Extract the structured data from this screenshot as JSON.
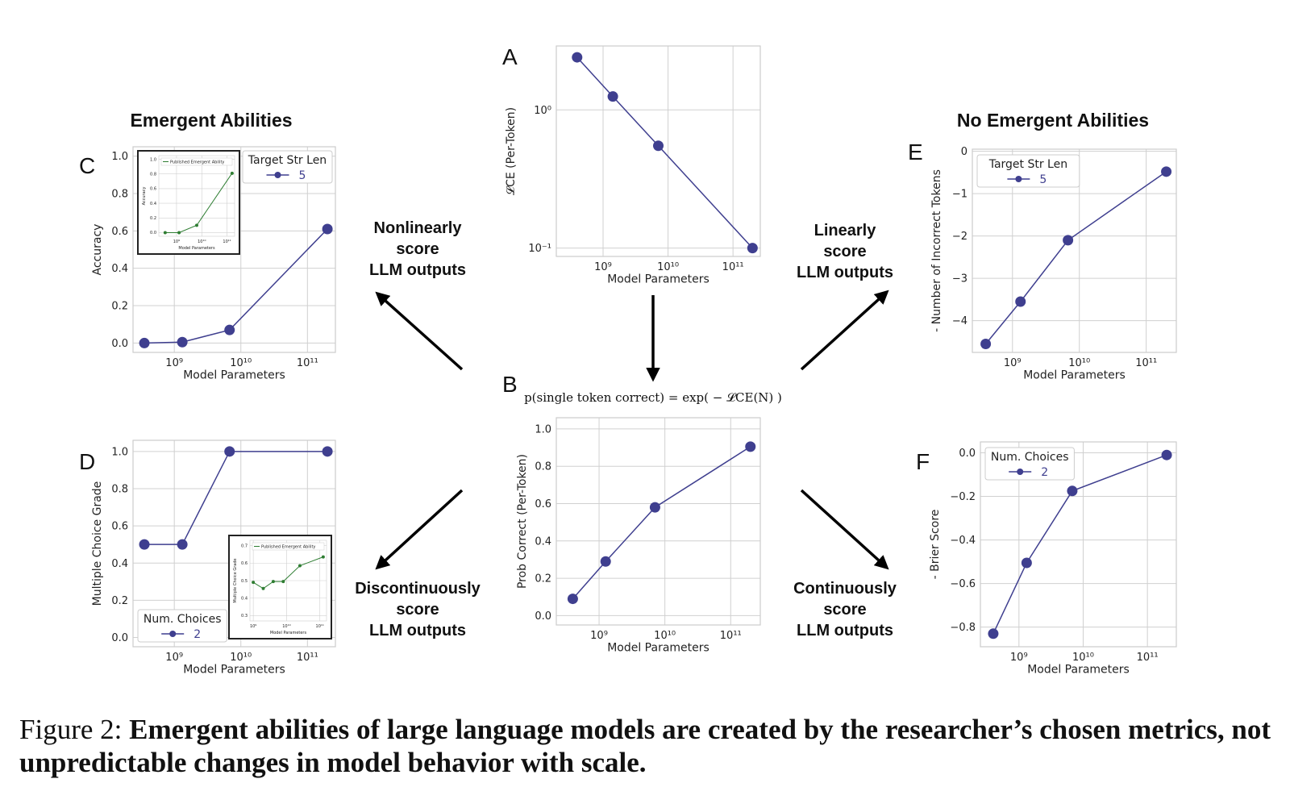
{
  "headings": {
    "left": "Emergent Abilities",
    "right": "No Emergent Abilities"
  },
  "arrow_labels": {
    "nonlinear": [
      "Nonlinearly",
      "score",
      "LLM outputs"
    ],
    "linear": [
      "Linearly",
      "score",
      "LLM outputs"
    ],
    "discontinuous": [
      "Discontinuously",
      "score",
      "LLM outputs"
    ],
    "continuous": [
      "Continuously",
      "score",
      "LLM outputs"
    ]
  },
  "formula": "p(single token correct) = exp( − 𝓛CE(N) )",
  "caption": {
    "prefix": "Figure 2: ",
    "bold": "Emergent abilities of large language models are created by the researcher’s chosen metrics, not unpredictable changes in model behavior with scale."
  },
  "colors": {
    "series": "#3f3f8f",
    "inset": "#2e7d32",
    "grid": "#d0d0d0"
  },
  "chart_data": [
    {
      "id": "A",
      "letter": "A",
      "type": "line",
      "xlabel": "Model Parameters",
      "ylabel": "𝓛CE (Per-Token)",
      "xscale": "log",
      "yscale": "log",
      "xlim": [
        8.28,
        11.42
      ],
      "ylim": [
        0.087,
        2.9
      ],
      "xticks": [
        9,
        10,
        11
      ],
      "yticks": [
        {
          "v": 1,
          "t": "10⁰"
        },
        {
          "v": 0.1,
          "t": "10⁻¹"
        }
      ],
      "x": [
        8.6,
        9.15,
        9.85,
        11.3
      ],
      "y": [
        2.4,
        1.25,
        0.55,
        0.1
      ]
    },
    {
      "id": "B",
      "letter": "B",
      "type": "line",
      "xlabel": "Model Parameters",
      "ylabel": "Prob Correct (Per-Token)",
      "xscale": "log",
      "xlim": [
        8.35,
        11.45
      ],
      "ylim": [
        -0.05,
        1.06
      ],
      "xticks": [
        9,
        10,
        11
      ],
      "yticks": [
        {
          "v": 0,
          "t": "0.0"
        },
        {
          "v": 0.2,
          "t": "0.2"
        },
        {
          "v": 0.4,
          "t": "0.4"
        },
        {
          "v": 0.6,
          "t": "0.6"
        },
        {
          "v": 0.8,
          "t": "0.8"
        },
        {
          "v": 1,
          "t": "1.0"
        }
      ],
      "x": [
        8.6,
        9.1,
        9.85,
        11.3
      ],
      "y": [
        0.09,
        0.29,
        0.58,
        0.905
      ]
    },
    {
      "id": "C",
      "letter": "C",
      "type": "line",
      "xlabel": "Model Parameters",
      "ylabel": "Accuracy",
      "xscale": "log",
      "xlim": [
        8.38,
        11.42
      ],
      "ylim": [
        -0.05,
        1.05
      ],
      "xticks": [
        9,
        10,
        11
      ],
      "yticks": [
        {
          "v": 0,
          "t": "0.0"
        },
        {
          "v": 0.2,
          "t": "0.2"
        },
        {
          "v": 0.4,
          "t": "0.4"
        },
        {
          "v": 0.6,
          "t": "0.6"
        },
        {
          "v": 0.8,
          "t": "0.8"
        },
        {
          "v": 1,
          "t": "1.0"
        }
      ],
      "x": [
        8.55,
        9.12,
        9.83,
        11.3
      ],
      "y": [
        0,
        0.005,
        0.07,
        0.61
      ],
      "legend": {
        "title": "Target Str Len",
        "entry": "5",
        "placement": "top-right"
      },
      "inset": {
        "legend": "Published Emergent Ability",
        "xlabel": "Model Parameters",
        "ylabel": "Accuracy",
        "xlim": [
          8.3,
          11.3
        ],
        "ylim": [
          -0.05,
          1.05
        ],
        "xticks": [
          9,
          10,
          11
        ],
        "yticks": [
          {
            "v": 0,
            "t": "0.0"
          },
          {
            "v": 0.2,
            "t": "0.2"
          },
          {
            "v": 0.4,
            "t": "0.4"
          },
          {
            "v": 0.6,
            "t": "0.6"
          },
          {
            "v": 0.8,
            "t": "0.8"
          },
          {
            "v": 1,
            "t": "1.0"
          }
        ],
        "x": [
          8.55,
          9.1,
          9.8,
          11.2
        ],
        "y": [
          0,
          0,
          0.1,
          0.81
        ],
        "placement": "top-left"
      }
    },
    {
      "id": "D",
      "letter": "D",
      "type": "line",
      "xlabel": "Model Parameters",
      "ylabel": "Multiple Choice Grade",
      "xscale": "log",
      "xlim": [
        8.38,
        11.42
      ],
      "ylim": [
        -0.05,
        1.06
      ],
      "xticks": [
        9,
        10,
        11
      ],
      "yticks": [
        {
          "v": 0,
          "t": "0.0"
        },
        {
          "v": 0.2,
          "t": "0.2"
        },
        {
          "v": 0.4,
          "t": "0.4"
        },
        {
          "v": 0.6,
          "t": "0.6"
        },
        {
          "v": 0.8,
          "t": "0.8"
        },
        {
          "v": 1,
          "t": "1.0"
        }
      ],
      "x": [
        8.55,
        9.12,
        9.83,
        11.3
      ],
      "y": [
        0.5,
        0.5,
        1.0,
        1.0
      ],
      "legend": {
        "title": "Num. Choices",
        "entry": "2",
        "placement": "bottom-left"
      },
      "inset": {
        "legend": "Published Emergent Ability",
        "xlabel": "Model Parameters",
        "ylabel": "Multiple Choice Grade",
        "xlim": [
          8.9,
          11.2
        ],
        "ylim": [
          0.27,
          0.73
        ],
        "xticks": [
          9,
          10,
          11
        ],
        "yticks": [
          {
            "v": 0.3,
            "t": "0.3"
          },
          {
            "v": 0.4,
            "t": "0.4"
          },
          {
            "v": 0.5,
            "t": "0.5"
          },
          {
            "v": 0.6,
            "t": "0.6"
          },
          {
            "v": 0.7,
            "t": "0.7"
          }
        ],
        "x": [
          9.0,
          9.3,
          9.6,
          9.9,
          10.4,
          11.1
        ],
        "y": [
          0.49,
          0.455,
          0.495,
          0.495,
          0.585,
          0.635
        ],
        "placement": "bottom-right"
      }
    },
    {
      "id": "E",
      "letter": "E",
      "type": "line",
      "xlabel": "Model Parameters",
      "ylabel": "- Number of Incorrect Tokens",
      "xscale": "log",
      "xlim": [
        8.4,
        11.45
      ],
      "ylim": [
        -4.75,
        0.05
      ],
      "xticks": [
        9,
        10,
        11
      ],
      "yticks": [
        {
          "v": 0,
          "t": "0"
        },
        {
          "v": -1,
          "t": "−1"
        },
        {
          "v": -2,
          "t": "−2"
        },
        {
          "v": -3,
          "t": "−3"
        },
        {
          "v": -4,
          "t": "−4"
        }
      ],
      "x": [
        8.6,
        9.12,
        9.83,
        11.3
      ],
      "y": [
        -4.55,
        -3.55,
        -2.1,
        -0.48
      ],
      "legend": {
        "title": "Target Str Len",
        "entry": "5",
        "placement": "top-left"
      }
    },
    {
      "id": "F",
      "letter": "F",
      "type": "line",
      "xlabel": "Model Parameters",
      "ylabel": "- Brier Score",
      "xscale": "log",
      "xlim": [
        8.4,
        11.45
      ],
      "ylim": [
        -0.89,
        0.05
      ],
      "xticks": [
        9,
        10,
        11
      ],
      "yticks": [
        {
          "v": 0,
          "t": "0.0"
        },
        {
          "v": -0.2,
          "t": "−0.2"
        },
        {
          "v": -0.4,
          "t": "−0.4"
        },
        {
          "v": -0.6,
          "t": "−0.6"
        },
        {
          "v": -0.8,
          "t": "−0.8"
        }
      ],
      "x": [
        8.6,
        9.12,
        9.83,
        11.3
      ],
      "y": [
        -0.83,
        -0.505,
        -0.175,
        -0.01
      ],
      "legend": {
        "title": "Num. Choices",
        "entry": "2",
        "placement": "top-left"
      }
    }
  ]
}
